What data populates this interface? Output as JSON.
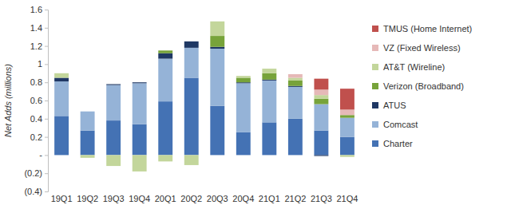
{
  "chart_data": {
    "type": "bar",
    "stacked": true,
    "legend": "right",
    "y_label": "Net Adds (millions)",
    "categories": [
      "19Q1",
      "19Q2",
      "19Q3",
      "19Q4",
      "20Q1",
      "20Q2",
      "20Q3",
      "20Q4",
      "21Q1",
      "21Q2",
      "21Q3",
      "21Q4"
    ],
    "ylim": [
      -0.4,
      1.6
    ],
    "yticks": [
      {
        "value": -0.4,
        "label": "(0.4)"
      },
      {
        "value": -0.2,
        "label": "(0.2)"
      },
      {
        "value": 0,
        "label": "-"
      },
      0.2,
      0.4,
      0.6,
      0.8,
      1,
      1.2,
      1.4,
      1.6
    ],
    "series": [
      {
        "name": "Charter",
        "color": "#4472b4",
        "values": [
          0.43,
          0.27,
          0.38,
          0.34,
          0.59,
          0.85,
          0.54,
          0.25,
          0.36,
          0.4,
          0.27,
          0.2
        ]
      },
      {
        "name": "Comcast",
        "color": "#95b3d7",
        "values": [
          0.38,
          0.21,
          0.39,
          0.45,
          0.47,
          0.33,
          0.63,
          0.54,
          0.46,
          0.35,
          0.29,
          0.21
        ]
      },
      {
        "name": "ATUS",
        "color": "#1f3864",
        "values": [
          0.04,
          0.0,
          0.01,
          0.01,
          0.06,
          0.07,
          0.02,
          0.01,
          0.01,
          0.01,
          -0.01,
          0.0
        ]
      },
      {
        "name": "Verizon (Broadband)",
        "color": "#77a33a",
        "values": [
          0.0,
          0.0,
          0.0,
          0.0,
          0.03,
          0.0,
          0.12,
          0.05,
          0.07,
          0.06,
          0.06,
          0.03
        ]
      },
      {
        "name": "AT&T (Wireline)",
        "color": "#c3d69b",
        "values": [
          0.05,
          -0.03,
          -0.12,
          -0.18,
          -0.07,
          -0.11,
          0.16,
          0.02,
          0.05,
          0.03,
          0.04,
          -0.02
        ]
      },
      {
        "name": "VZ (Fixed Wireless)",
        "color": "#e6b9b8",
        "values": [
          0.0,
          0.0,
          0.0,
          0.0,
          0.0,
          0.0,
          0.0,
          0.0,
          0.0,
          0.04,
          0.06,
          0.06
        ]
      },
      {
        "name": "TMUS (Home Internet)",
        "color": "#c0504d",
        "values": [
          0.0,
          0.0,
          0.0,
          0.0,
          0.0,
          0.0,
          0.0,
          0.0,
          0.0,
          0.0,
          0.12,
          0.23
        ]
      }
    ]
  }
}
